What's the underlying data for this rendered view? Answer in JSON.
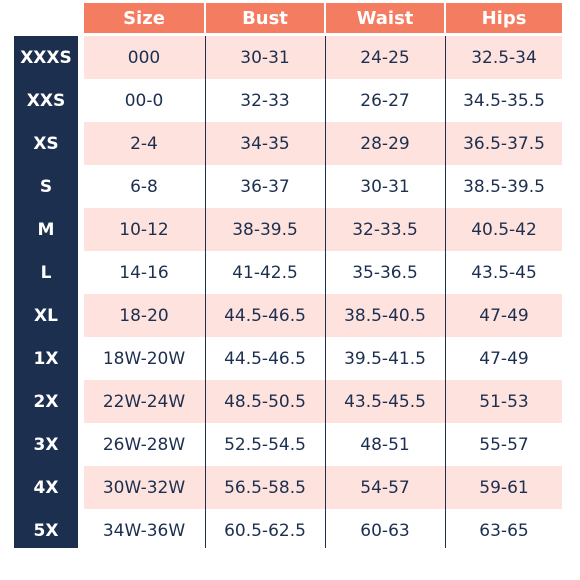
{
  "headers": [
    "Size",
    "Bust",
    "Waist",
    "Hips"
  ],
  "rows": [
    {
      "label": "XXXS",
      "cells": [
        "000",
        "30-31",
        "24-25",
        "32.5-34"
      ]
    },
    {
      "label": "XXS",
      "cells": [
        "00-0",
        "32-33",
        "26-27",
        "34.5-35.5"
      ]
    },
    {
      "label": "XS",
      "cells": [
        "2-4",
        "34-35",
        "28-29",
        "36.5-37.5"
      ]
    },
    {
      "label": "S",
      "cells": [
        "6-8",
        "36-37",
        "30-31",
        "38.5-39.5"
      ]
    },
    {
      "label": "M",
      "cells": [
        "10-12",
        "38-39.5",
        "32-33.5",
        "40.5-42"
      ]
    },
    {
      "label": "L",
      "cells": [
        "14-16",
        "41-42.5",
        "35-36.5",
        "43.5-45"
      ]
    },
    {
      "label": "XL",
      "cells": [
        "18-20",
        "44.5-46.5",
        "38.5-40.5",
        "47-49"
      ]
    },
    {
      "label": "1X",
      "cells": [
        "18W-20W",
        "44.5-46.5",
        "39.5-41.5",
        "47-49"
      ]
    },
    {
      "label": "2X",
      "cells": [
        "22W-24W",
        "48.5-50.5",
        "43.5-45.5",
        "51-53"
      ]
    },
    {
      "label": "3X",
      "cells": [
        "26W-28W",
        "52.5-54.5",
        "48-51",
        "55-57"
      ]
    },
    {
      "label": "4X",
      "cells": [
        "30W-32W",
        "56.5-58.5",
        "54-57",
        "59-61"
      ]
    },
    {
      "label": "5X",
      "cells": [
        "34W-36W",
        "60.5-62.5",
        "60-63",
        "63-65"
      ]
    }
  ],
  "colors": {
    "header_bg": "#f47c60",
    "label_bg": "#1d2f4f",
    "row_tint": "#fde2de",
    "text": "#1d2f4f"
  }
}
